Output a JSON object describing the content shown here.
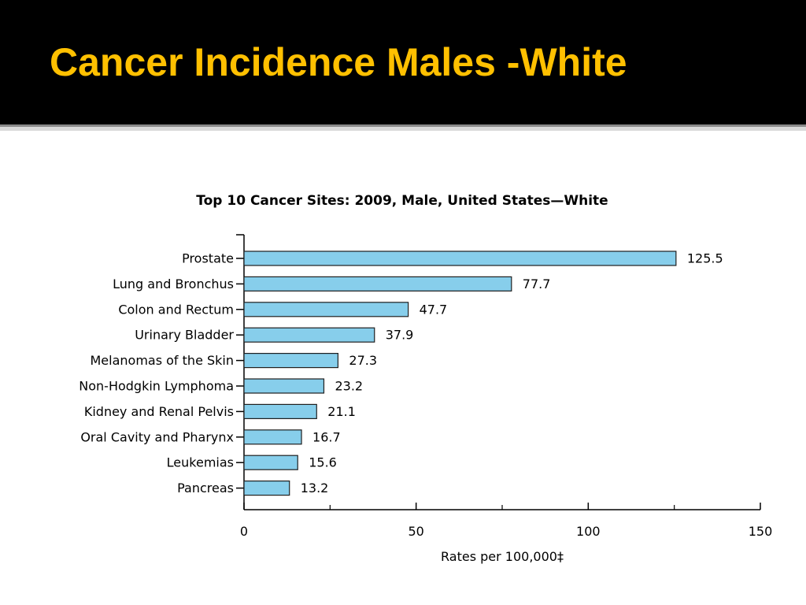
{
  "slide": {
    "title": "Cancer Incidence Males -White"
  },
  "colors": {
    "header_bg": "#000000",
    "title": "#ffc000",
    "bar_fill": "#87ceeb",
    "bar_stroke": "#1f1f1f",
    "axis": "#000000",
    "text": "#000000"
  },
  "chart_data": {
    "type": "bar",
    "orientation": "horizontal",
    "title": "Top 10 Cancer Sites: 2009, Male, United States—White",
    "xlabel": "Rates per 100,000‡",
    "ylabel": "",
    "categories": [
      "Prostate",
      "Lung and Bronchus",
      "Colon and Rectum",
      "Urinary Bladder",
      "Melanomas of the Skin",
      "Non-Hodgkin Lymphoma",
      "Kidney and Renal Pelvis",
      "Oral Cavity and Pharynx",
      "Leukemias",
      "Pancreas"
    ],
    "values": [
      125.5,
      77.7,
      47.7,
      37.9,
      27.3,
      23.2,
      21.1,
      16.7,
      15.6,
      13.2
    ],
    "value_labels": [
      "125.5",
      "77.7",
      "47.7",
      "37.9",
      "27.3",
      "23.2",
      "21.1",
      "16.7",
      "15.6",
      "13.2"
    ],
    "xlim": [
      0,
      150
    ],
    "major_ticks": [
      0,
      50,
      100,
      150
    ],
    "minor_ticks": [
      25,
      75,
      125
    ],
    "tick_labels": [
      "0",
      "50",
      "100",
      "150"
    ],
    "grid": false,
    "legend": "none"
  }
}
